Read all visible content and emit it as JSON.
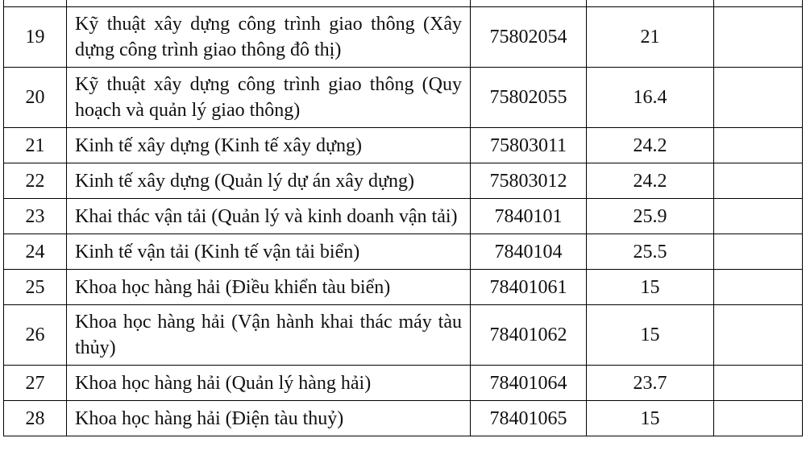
{
  "table": {
    "rows": [
      [
        "19",
        "Kỹ thuật xây dựng công trình giao thông (Xây dựng công trình giao thông đô thị)",
        "75802054",
        "21",
        ""
      ],
      [
        "20",
        "Kỹ thuật xây dựng công trình giao thông (Quy hoạch và quản lý giao thông)",
        "75802055",
        "16.4",
        ""
      ],
      [
        "21",
        "Kinh tế xây dựng (Kinh tế xây dựng)",
        "75803011",
        "24.2",
        ""
      ],
      [
        "22",
        "Kinh tế xây dựng (Quản lý dự án xây dựng)",
        "75803012",
        "24.2",
        ""
      ],
      [
        "23",
        "Khai thác vận tải (Quản lý và kinh doanh vận tải)",
        "7840101",
        "25.9",
        ""
      ],
      [
        "24",
        "Kinh tế vận tải (Kinh tế vận tải biển)",
        "7840104",
        "25.5",
        ""
      ],
      [
        "25",
        "Khoa học hàng hải (Điều khiển tàu biển)",
        "78401061",
        "15",
        ""
      ],
      [
        "26",
        "Khoa học hàng hải (Vận hành khai thác máy tàu thủy)",
        "78401062",
        "15",
        ""
      ],
      [
        "27",
        "Khoa học hàng hải (Quản lý hàng hải)",
        "78401064",
        "23.7",
        ""
      ],
      [
        "28",
        "Khoa học hàng hải (Điện tàu thuỷ)",
        "78401065",
        "15",
        ""
      ]
    ]
  }
}
